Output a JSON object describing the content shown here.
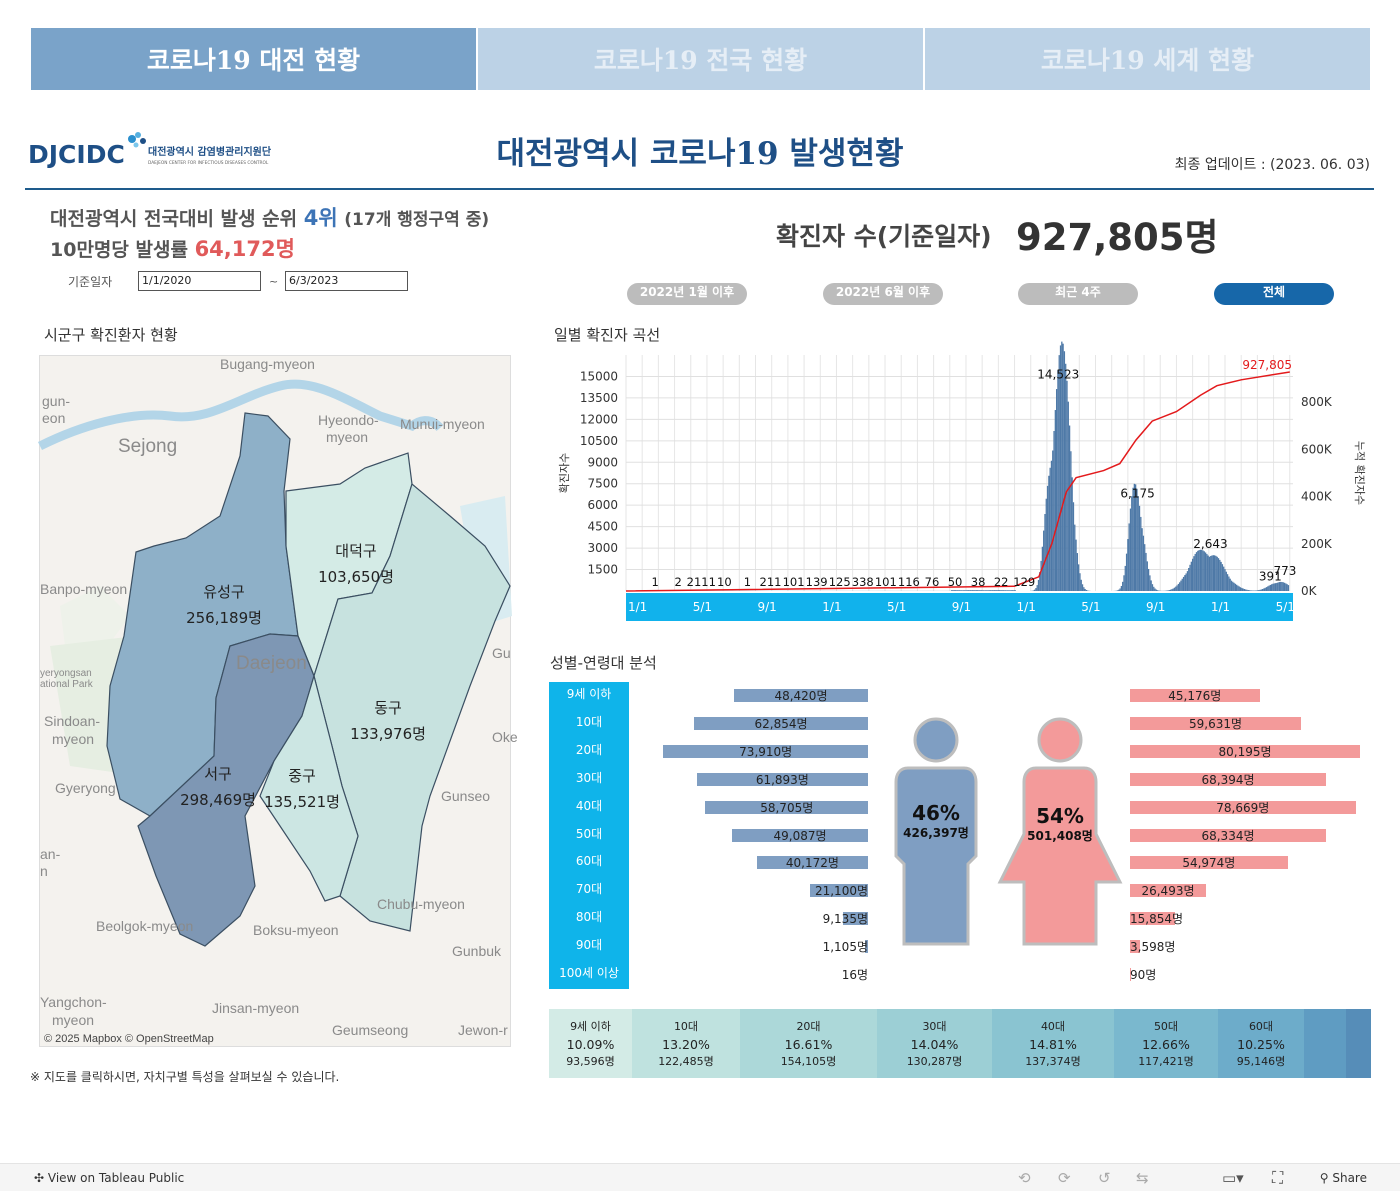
{
  "tabs": [
    {
      "label": "코로나19 대전 현황"
    },
    {
      "label": "코로나19 전국 현황"
    },
    {
      "label": "코로나19 세계 현황"
    }
  ],
  "header": {
    "logo_text": "DJCIDC",
    "logo_subtitle": "대전광역시 감염병관리지원단",
    "logo_subtitle_en": "DAEJEON CENTER FOR INFECTIOUS DISEASES CONTROL",
    "title": "대전광역시 코로나19 발생현황",
    "update": "최종 업데이트 : (2023. 06. 03)"
  },
  "summary": {
    "rank_prefix": "대전광역시 전국대비 발생 순위",
    "rank_value": "4위",
    "rank_suffix": "(17개 행정구역 중)",
    "rate_prefix": "10만명당 발생률",
    "rate_value": "64,172명",
    "date_label": "기준일자",
    "date_from": "1/1/2020",
    "date_sep": "~",
    "date_to": "6/3/2023",
    "total_label": "확진자 수(기준일자)",
    "total_value": "927,805명"
  },
  "filters": [
    {
      "label": "2022년 1월 이후",
      "active": false
    },
    {
      "label": "2022년 6월 이후",
      "active": false
    },
    {
      "label": "최근 4주",
      "active": false
    },
    {
      "label": "전체",
      "active": true
    }
  ],
  "map": {
    "title": "시군구 확진환자 현황",
    "districts": [
      {
        "name": "유성구",
        "value": "256,189명",
        "color": "#8eb0c8"
      },
      {
        "name": "대덕구",
        "value": "103,650명",
        "color": "#d4ebe6"
      },
      {
        "name": "동구",
        "value": "133,976명",
        "color": "#c7e2df"
      },
      {
        "name": "서구",
        "value": "298,469명",
        "color": "#7e97b4"
      },
      {
        "name": "중구",
        "value": "135,521명",
        "color": "#cce6e3"
      }
    ],
    "places": [
      {
        "name": "Bugang-myeon"
      },
      {
        "name": "gun-"
      },
      {
        "name": "eon"
      },
      {
        "name": "Sejong"
      },
      {
        "name": "Hyeondo-"
      },
      {
        "name": "myeon"
      },
      {
        "name": "Munui-myeon"
      },
      {
        "name": "Banpo-myeon"
      },
      {
        "name": "Daejeon"
      },
      {
        "name": "Gu"
      },
      {
        "name": "Oke"
      },
      {
        "name": "yeryongsan"
      },
      {
        "name": "ational Park"
      },
      {
        "name": "Sindoan-"
      },
      {
        "name": "myeon"
      },
      {
        "name": "Gyeryong"
      },
      {
        "name": "Gunseo"
      },
      {
        "name": "an-"
      },
      {
        "name": "n"
      },
      {
        "name": "Chubu-myeon"
      },
      {
        "name": "Beolgok-myeon"
      },
      {
        "name": "Boksu-myeon"
      },
      {
        "name": "Gunbuk"
      },
      {
        "name": "Yangchon-"
      },
      {
        "name": "myeon"
      },
      {
        "name": "Jinsan-myeon"
      },
      {
        "name": "Geumseong"
      },
      {
        "name": "Jewon-r"
      }
    ],
    "attribution": "© 2025 Mapbox  © OpenStreetMap",
    "note": "※ 지도를 클릭하시면, 자치구별 특성을 살펴보실 수 있습니다."
  },
  "chart_data": {
    "type": "bar",
    "title": "일별 확진자 곡선",
    "ylabel": "확진자수",
    "y2label": "누적 확진자수",
    "ylim": [
      0,
      16500
    ],
    "y_ticks": [
      1500,
      3000,
      4500,
      6000,
      7500,
      9000,
      10500,
      12000,
      13500,
      15000
    ],
    "y2_ticks": [
      "0K",
      "200K",
      "400K",
      "600K",
      "800K"
    ],
    "y2lim": [
      0,
      1000000
    ],
    "x_ticks": [
      "1/1",
      "5/1",
      "9/1",
      "1/1",
      "5/1",
      "9/1",
      "1/1",
      "5/1",
      "9/1",
      "1/1",
      "5/1"
    ],
    "peaks": [
      {
        "month": 26.7,
        "value": 14523,
        "label": "14,523"
      },
      {
        "month": 31.6,
        "value": 6175,
        "label": "6,175"
      },
      {
        "month": 36.1,
        "value": 2643,
        "label": "2,643"
      },
      {
        "month": 39.8,
        "value": 391,
        "label": "391"
      },
      {
        "month": 40.7,
        "value": 773,
        "label": "773"
      }
    ],
    "low_labels": [
      "1",
      "2",
      "2111",
      "10",
      "1",
      "211",
      "101",
      "139",
      "125",
      "338",
      "101",
      "116",
      "76",
      "50",
      "38",
      "22",
      "129"
    ],
    "cumulative_final": 927805,
    "cumulative_label": "927,805",
    "series": [
      {
        "name": "확진자수",
        "color": "#4e79a7"
      },
      {
        "name": "누적 확진자수",
        "color": "#e31a1c"
      }
    ]
  },
  "agesex": {
    "title": "성별-연령대 분석",
    "groups": [
      "9세 이하",
      "10대",
      "20대",
      "30대",
      "40대",
      "50대",
      "60대",
      "70대",
      "80대",
      "90대",
      "100세 이상"
    ],
    "male": [
      48420,
      62854,
      73910,
      61893,
      58705,
      49087,
      40172,
      21100,
      9135,
      1105,
      16
    ],
    "male_labels": [
      "48,420명",
      "62,854명",
      "73,910명",
      "61,893명",
      "58,705명",
      "49,087명",
      "40,172명",
      "21,100명",
      "9,135명",
      "1,105명",
      "16명"
    ],
    "female": [
      45176,
      59631,
      80195,
      68394,
      78669,
      68334,
      54974,
      26493,
      15854,
      3598,
      90
    ],
    "female_labels": [
      "45,176명",
      "59,631명",
      "80,195명",
      "68,394명",
      "78,669명",
      "68,334명",
      "54,974명",
      "26,493명",
      "15,854명",
      "3,598명",
      "90명"
    ],
    "male_pct": "46%",
    "male_total": "426,397명",
    "female_pct": "54%",
    "female_total": "501,408명"
  },
  "age_strip": [
    {
      "age": "9세 이하",
      "pct": "10.09%",
      "count": "93,596명",
      "color": "#d3ebe6"
    },
    {
      "age": "10대",
      "pct": "13.20%",
      "count": "122,485명",
      "color": "#bfe2df"
    },
    {
      "age": "20대",
      "pct": "16.61%",
      "count": "154,105명",
      "color": "#acd8d9"
    },
    {
      "age": "30대",
      "pct": "14.04%",
      "count": "130,287명",
      "color": "#9ccfd5"
    },
    {
      "age": "40대",
      "pct": "14.81%",
      "count": "137,374명",
      "color": "#8ac4d1"
    },
    {
      "age": "50대",
      "pct": "12.66%",
      "count": "117,421명",
      "color": "#7ab8ce"
    },
    {
      "age": "60대",
      "pct": "10.25%",
      "count": "95,146명",
      "color": "#6dacca"
    },
    {
      "age": "",
      "pct": "",
      "count": "",
      "color": "#5f9cc2"
    },
    {
      "age": "",
      "pct": "",
      "count": "",
      "color": "#568db8"
    }
  ],
  "footer": {
    "view_label": "View on Tableau Public",
    "share_label": "Share"
  }
}
